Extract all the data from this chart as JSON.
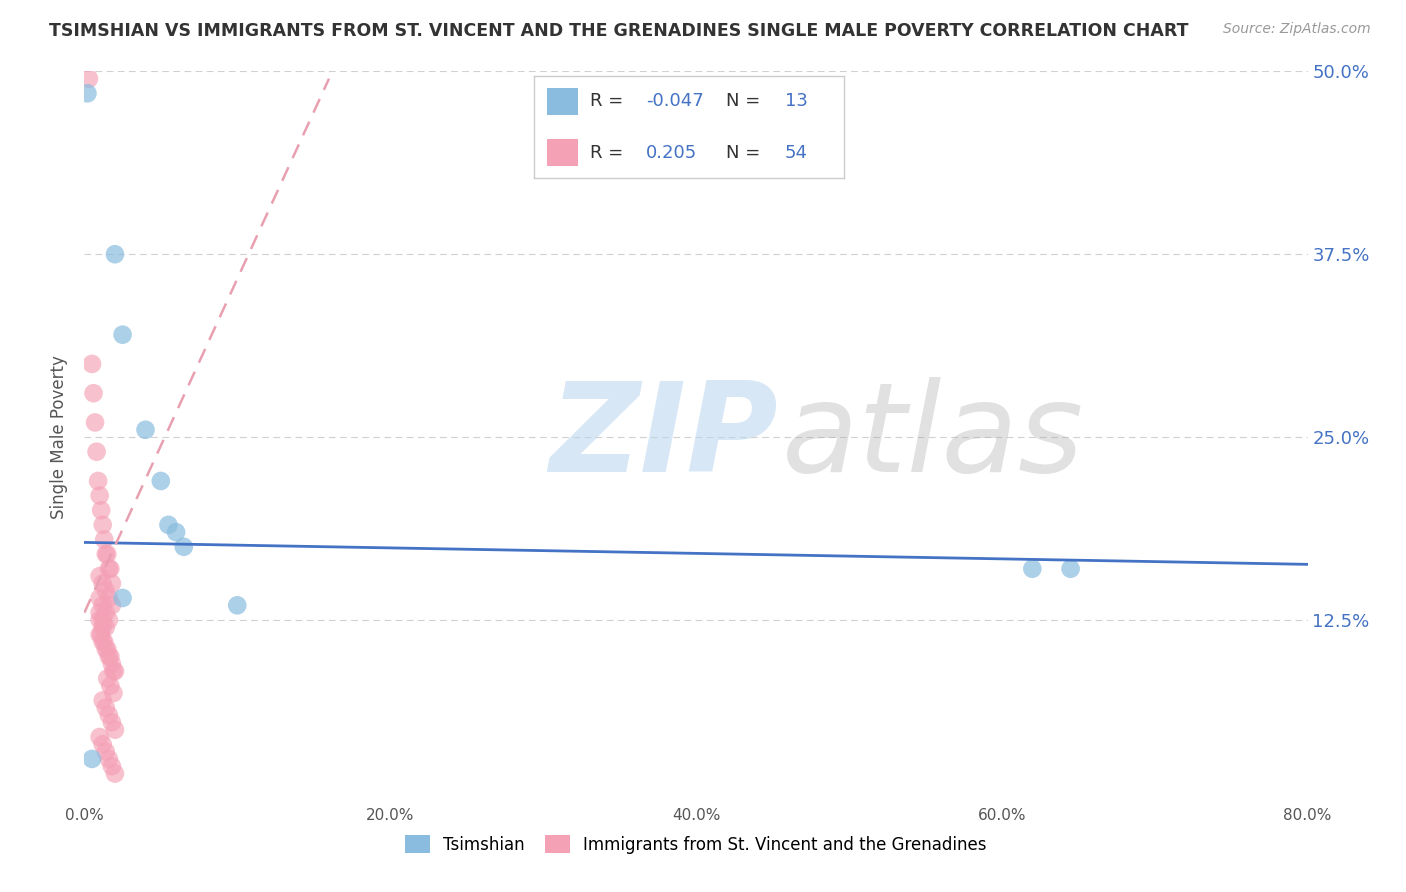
{
  "title": "TSIMSHIAN VS IMMIGRANTS FROM ST. VINCENT AND THE GRENADINES SINGLE MALE POVERTY CORRELATION CHART",
  "source": "Source: ZipAtlas.com",
  "ylabel": "Single Male Poverty",
  "xlim": [
    0.0,
    0.8
  ],
  "ylim": [
    0.0,
    0.5
  ],
  "xtick_labels": [
    "0.0%",
    "",
    "20.0%",
    "",
    "40.0%",
    "",
    "60.0%",
    "",
    "80.0%"
  ],
  "xtick_values": [
    0.0,
    0.1,
    0.2,
    0.3,
    0.4,
    0.5,
    0.6,
    0.7,
    0.8
  ],
  "ytick_labels": [
    "12.5%",
    "25.0%",
    "37.5%",
    "50.0%"
  ],
  "ytick_values": [
    0.125,
    0.25,
    0.375,
    0.5
  ],
  "blue_color": "#89bcde",
  "pink_color": "#f4a0b5",
  "blue_line_color": "#4472c4",
  "pink_line_color": "#e8a0b0",
  "blue_R": -0.047,
  "blue_N": 13,
  "pink_R": 0.205,
  "pink_N": 54,
  "legend_label_blue": "Tsimshian",
  "legend_label_pink": "Immigrants from St. Vincent and the Grenadines",
  "watermark_zip": "ZIP",
  "watermark_atlas": "atlas",
  "background_color": "#ffffff",
  "blue_scatter_x": [
    0.002,
    0.02,
    0.025,
    0.04,
    0.05,
    0.055,
    0.06,
    0.065,
    0.62,
    0.645,
    0.025,
    0.1,
    0.005
  ],
  "blue_scatter_y": [
    0.485,
    0.375,
    0.32,
    0.255,
    0.22,
    0.19,
    0.185,
    0.175,
    0.16,
    0.16,
    0.14,
    0.135,
    0.03
  ],
  "pink_scatter_x": [
    0.003,
    0.005,
    0.006,
    0.007,
    0.008,
    0.009,
    0.01,
    0.011,
    0.012,
    0.013,
    0.014,
    0.015,
    0.016,
    0.017,
    0.018,
    0.01,
    0.012,
    0.014,
    0.016,
    0.018,
    0.01,
    0.012,
    0.014,
    0.016,
    0.01,
    0.012,
    0.014,
    0.01,
    0.012,
    0.01,
    0.011,
    0.012,
    0.013,
    0.014,
    0.015,
    0.016,
    0.017,
    0.018,
    0.019,
    0.02,
    0.015,
    0.017,
    0.019,
    0.012,
    0.014,
    0.016,
    0.018,
    0.02,
    0.01,
    0.012,
    0.014,
    0.016,
    0.018,
    0.02
  ],
  "pink_scatter_y": [
    0.495,
    0.3,
    0.28,
    0.26,
    0.24,
    0.22,
    0.21,
    0.2,
    0.19,
    0.18,
    0.17,
    0.17,
    0.16,
    0.16,
    0.15,
    0.155,
    0.15,
    0.145,
    0.14,
    0.135,
    0.14,
    0.135,
    0.13,
    0.125,
    0.13,
    0.125,
    0.12,
    0.125,
    0.12,
    0.115,
    0.115,
    0.11,
    0.11,
    0.105,
    0.105,
    0.1,
    0.1,
    0.095,
    0.09,
    0.09,
    0.085,
    0.08,
    0.075,
    0.07,
    0.065,
    0.06,
    0.055,
    0.05,
    0.045,
    0.04,
    0.035,
    0.03,
    0.025,
    0.02
  ],
  "blue_trend_x": [
    0.0,
    0.8
  ],
  "blue_trend_y": [
    0.178,
    0.163
  ],
  "pink_trend_x": [
    0.0,
    0.16
  ],
  "pink_trend_y": [
    0.13,
    0.495
  ]
}
